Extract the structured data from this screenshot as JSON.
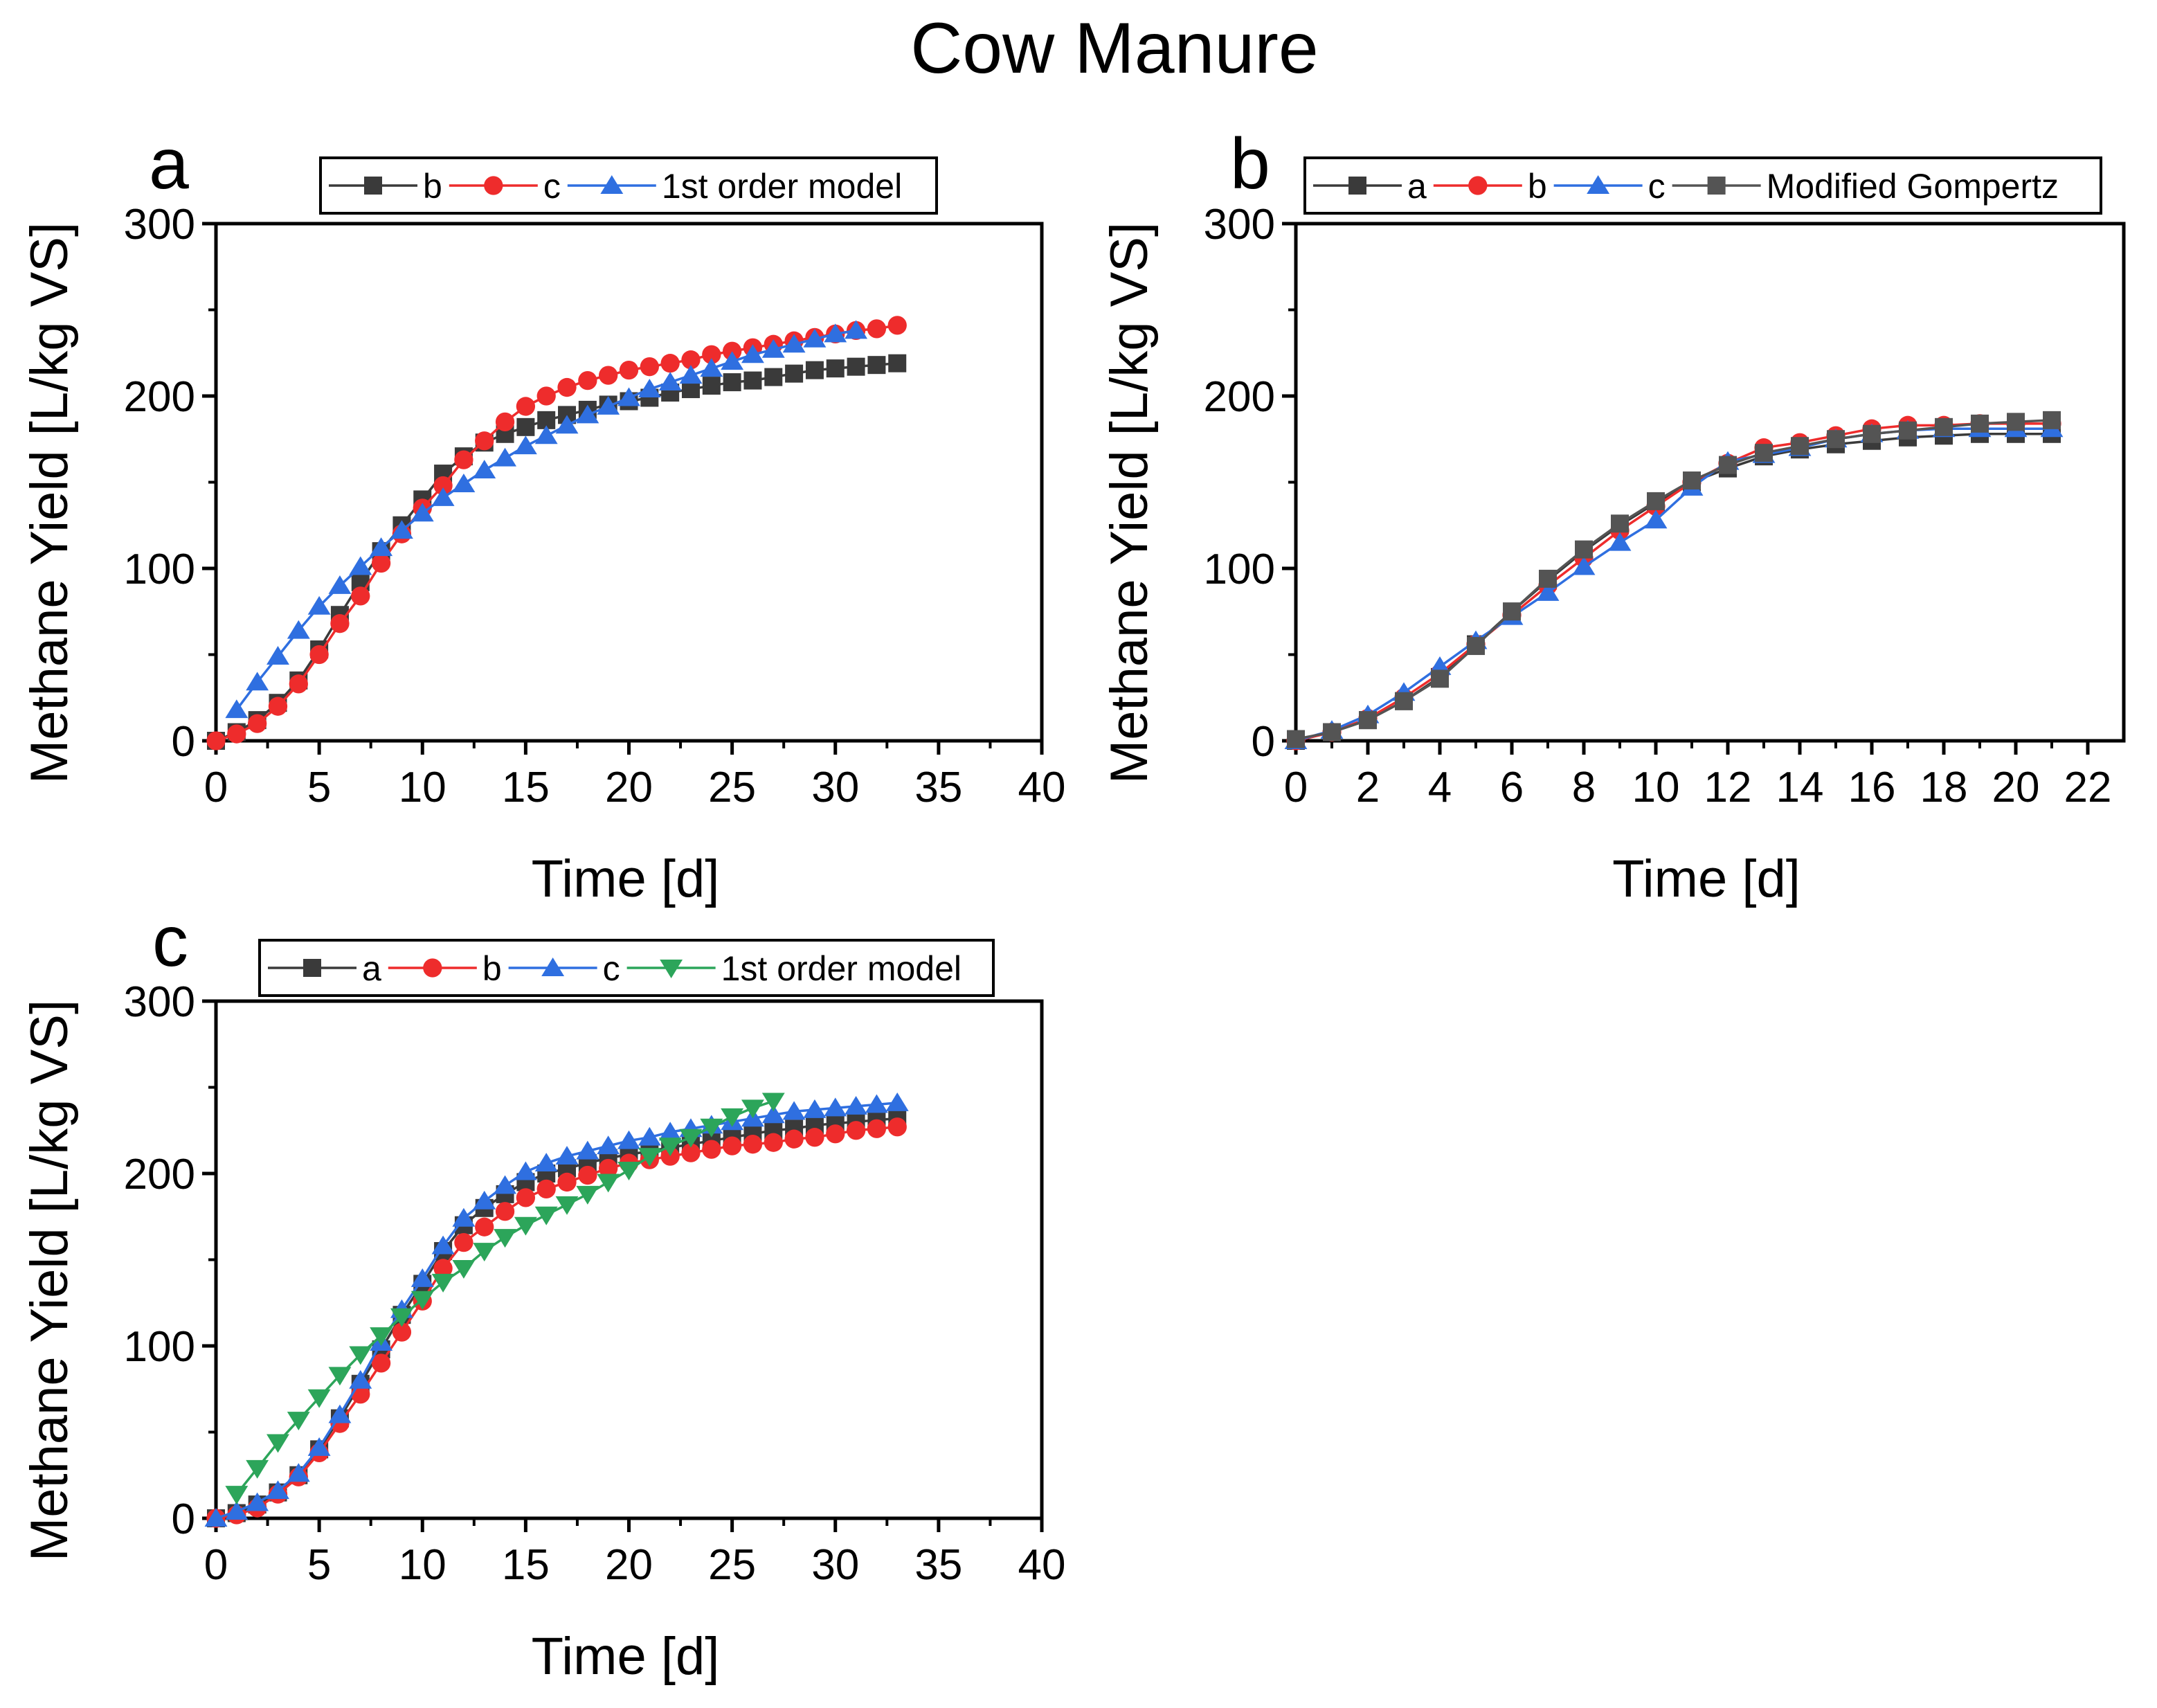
{
  "title": "Cow Manure",
  "colors": {
    "a": "#3a3a3a",
    "b": "#ee2c2c",
    "c": "#2f6fe0",
    "model": "#2ca55a",
    "gompertz": "#545454",
    "axis": "#000000"
  },
  "chart_data": [
    {
      "panel": "a",
      "type": "line",
      "xlabel": "Time [d]",
      "ylabel": "Methane Yield [L/kg VS]",
      "xlim": [
        0,
        40
      ],
      "ylim": [
        0,
        300
      ],
      "xticks": [
        0,
        5,
        10,
        15,
        20,
        25,
        30,
        35,
        40
      ],
      "yticks": [
        0,
        100,
        200,
        300
      ],
      "legend": [
        "b",
        "c",
        "1st order model"
      ],
      "series": [
        {
          "name": "b",
          "marker": "square",
          "color": "#3a3a3a",
          "x": [
            0,
            1,
            2,
            3,
            4,
            5,
            6,
            7,
            8,
            9,
            10,
            11,
            12,
            13,
            14,
            15,
            16,
            17,
            18,
            19,
            20,
            21,
            22,
            23,
            24,
            25,
            26,
            27,
            28,
            29,
            30,
            31,
            32,
            33
          ],
          "y": [
            0,
            5,
            12,
            22,
            35,
            53,
            73,
            92,
            110,
            125,
            140,
            155,
            165,
            173,
            178,
            182,
            186,
            189,
            192,
            195,
            197,
            199,
            202,
            204,
            206,
            208,
            209,
            211,
            213,
            215,
            216,
            217,
            218,
            219
          ]
        },
        {
          "name": "c",
          "marker": "circle",
          "color": "#ee2c2c",
          "x": [
            0,
            1,
            2,
            3,
            4,
            5,
            6,
            7,
            8,
            9,
            10,
            11,
            12,
            13,
            14,
            15,
            16,
            17,
            18,
            19,
            20,
            21,
            22,
            23,
            24,
            25,
            26,
            27,
            28,
            29,
            30,
            31,
            32,
            33
          ],
          "y": [
            0,
            4,
            10,
            20,
            33,
            50,
            68,
            84,
            103,
            120,
            135,
            148,
            163,
            174,
            185,
            194,
            200,
            205,
            209,
            212,
            215,
            217,
            219,
            221,
            224,
            226,
            228,
            230,
            232,
            234,
            236,
            238,
            239,
            241
          ]
        },
        {
          "name": "1st order model",
          "marker": "triangle-up",
          "color": "#2f6fe0",
          "x": [
            1,
            2,
            3,
            4,
            5,
            6,
            7,
            8,
            9,
            10,
            11,
            12,
            13,
            14,
            15,
            16,
            17,
            18,
            19,
            20,
            21,
            22,
            23,
            24,
            25,
            26,
            27,
            28,
            29,
            30,
            31
          ],
          "y": [
            18,
            34,
            49,
            64,
            78,
            90,
            101,
            112,
            122,
            132,
            141,
            149,
            157,
            164,
            171,
            177,
            183,
            189,
            194,
            199,
            204,
            208,
            212,
            216,
            220,
            224,
            227,
            230,
            233,
            236,
            238
          ]
        }
      ]
    },
    {
      "panel": "b",
      "type": "line",
      "xlabel": "Time [d]",
      "ylabel": "Methane Yield [L/kg VS]",
      "xlim": [
        0,
        23
      ],
      "ylim": [
        0,
        300
      ],
      "xticks": [
        0,
        2,
        4,
        6,
        8,
        10,
        12,
        14,
        16,
        18,
        20,
        22
      ],
      "yticks": [
        0,
        100,
        200,
        300
      ],
      "legend": [
        "a",
        "b",
        "c",
        "Modified Gompertz"
      ],
      "series": [
        {
          "name": "a",
          "marker": "square",
          "color": "#3a3a3a",
          "x": [
            0,
            1,
            2,
            3,
            4,
            5,
            6,
            7,
            8,
            9,
            10,
            11,
            12,
            13,
            14,
            15,
            16,
            17,
            18,
            19,
            20,
            21
          ],
          "y": [
            0,
            5,
            12,
            23,
            37,
            56,
            75,
            93,
            110,
            125,
            138,
            150,
            158,
            165,
            169,
            172,
            174,
            176,
            177,
            178,
            178,
            178
          ]
        },
        {
          "name": "b",
          "marker": "circle",
          "color": "#ee2c2c",
          "x": [
            0,
            1,
            2,
            3,
            4,
            5,
            6,
            7,
            8,
            9,
            10,
            11,
            12,
            13,
            14,
            15,
            16,
            17,
            18,
            19,
            20,
            21
          ],
          "y": [
            0,
            5,
            13,
            25,
            39,
            56,
            73,
            90,
            106,
            122,
            136,
            150,
            161,
            170,
            173,
            177,
            181,
            183,
            183,
            184,
            184,
            184
          ]
        },
        {
          "name": "c",
          "marker": "triangle-up",
          "color": "#2f6fe0",
          "x": [
            0,
            1,
            2,
            3,
            4,
            5,
            6,
            7,
            8,
            9,
            10,
            11,
            12,
            13,
            14,
            15,
            16,
            17,
            18,
            19,
            20,
            21
          ],
          "y": [
            0,
            6,
            15,
            28,
            43,
            58,
            72,
            86,
            101,
            115,
            128,
            147,
            162,
            166,
            170,
            175,
            178,
            180,
            181,
            181,
            181,
            181
          ]
        },
        {
          "name": "Modified Gompertz",
          "marker": "square",
          "color": "#545454",
          "x": [
            0,
            1,
            2,
            3,
            4,
            5,
            6,
            7,
            8,
            9,
            10,
            11,
            12,
            13,
            14,
            15,
            16,
            17,
            18,
            19,
            20,
            21
          ],
          "y": [
            1,
            5,
            12,
            23,
            36,
            55,
            75,
            94,
            111,
            126,
            139,
            151,
            160,
            167,
            171,
            175,
            178,
            180,
            182,
            184,
            185,
            186
          ]
        }
      ]
    },
    {
      "panel": "c",
      "type": "line",
      "xlabel": "Time [d]",
      "ylabel": "Methane Yield [L/kg VS]",
      "xlim": [
        0,
        40
      ],
      "ylim": [
        0,
        300
      ],
      "xticks": [
        0,
        5,
        10,
        15,
        20,
        25,
        30,
        35,
        40
      ],
      "yticks": [
        0,
        100,
        200,
        300
      ],
      "legend": [
        "a",
        "b",
        "c",
        "1st order model"
      ],
      "series": [
        {
          "name": "a",
          "marker": "square",
          "color": "#3a3a3a",
          "x": [
            0,
            1,
            2,
            3,
            4,
            5,
            6,
            7,
            8,
            9,
            10,
            11,
            12,
            13,
            14,
            15,
            16,
            17,
            18,
            19,
            20,
            21,
            22,
            23,
            24,
            25,
            26,
            27,
            28,
            29,
            30,
            31,
            32,
            33
          ],
          "y": [
            0,
            3,
            8,
            15,
            25,
            40,
            58,
            78,
            98,
            118,
            136,
            155,
            170,
            180,
            188,
            195,
            200,
            203,
            206,
            209,
            211,
            213,
            215,
            217,
            219,
            221,
            223,
            225,
            226,
            228,
            229,
            230,
            231,
            232
          ]
        },
        {
          "name": "b",
          "marker": "circle",
          "color": "#ee2c2c",
          "x": [
            0,
            1,
            2,
            3,
            4,
            5,
            6,
            7,
            8,
            9,
            10,
            11,
            12,
            13,
            14,
            15,
            16,
            17,
            18,
            19,
            20,
            21,
            22,
            23,
            24,
            25,
            26,
            27,
            28,
            29,
            30,
            31,
            32,
            33
          ],
          "y": [
            0,
            2,
            6,
            14,
            24,
            38,
            55,
            72,
            90,
            108,
            126,
            145,
            160,
            169,
            178,
            186,
            191,
            195,
            199,
            203,
            206,
            208,
            210,
            212,
            214,
            216,
            217,
            218,
            220,
            221,
            223,
            225,
            226,
            227
          ]
        },
        {
          "name": "c",
          "marker": "triangle-up",
          "color": "#2f6fe0",
          "x": [
            0,
            1,
            2,
            3,
            4,
            5,
            6,
            7,
            8,
            9,
            10,
            11,
            12,
            13,
            14,
            15,
            16,
            17,
            18,
            19,
            20,
            21,
            22,
            23,
            24,
            25,
            26,
            27,
            28,
            29,
            30,
            31,
            32,
            33
          ],
          "y": [
            0,
            4,
            9,
            16,
            26,
            41,
            60,
            80,
            102,
            121,
            139,
            158,
            174,
            184,
            193,
            201,
            206,
            210,
            213,
            216,
            219,
            221,
            224,
            226,
            228,
            230,
            232,
            234,
            236,
            237,
            238,
            239,
            240,
            241
          ]
        },
        {
          "name": "1st order model",
          "marker": "triangle-down",
          "color": "#2ca55a",
          "x": [
            1,
            2,
            3,
            4,
            5,
            6,
            7,
            8,
            9,
            10,
            11,
            12,
            13,
            14,
            15,
            16,
            17,
            18,
            19,
            20,
            21,
            22,
            23,
            24,
            25,
            26,
            27
          ],
          "y": [
            14,
            29,
            44,
            57,
            70,
            83,
            95,
            106,
            117,
            127,
            137,
            145,
            155,
            163,
            170,
            176,
            182,
            188,
            195,
            202,
            210,
            216,
            221,
            227,
            233,
            238,
            242
          ]
        }
      ]
    }
  ]
}
